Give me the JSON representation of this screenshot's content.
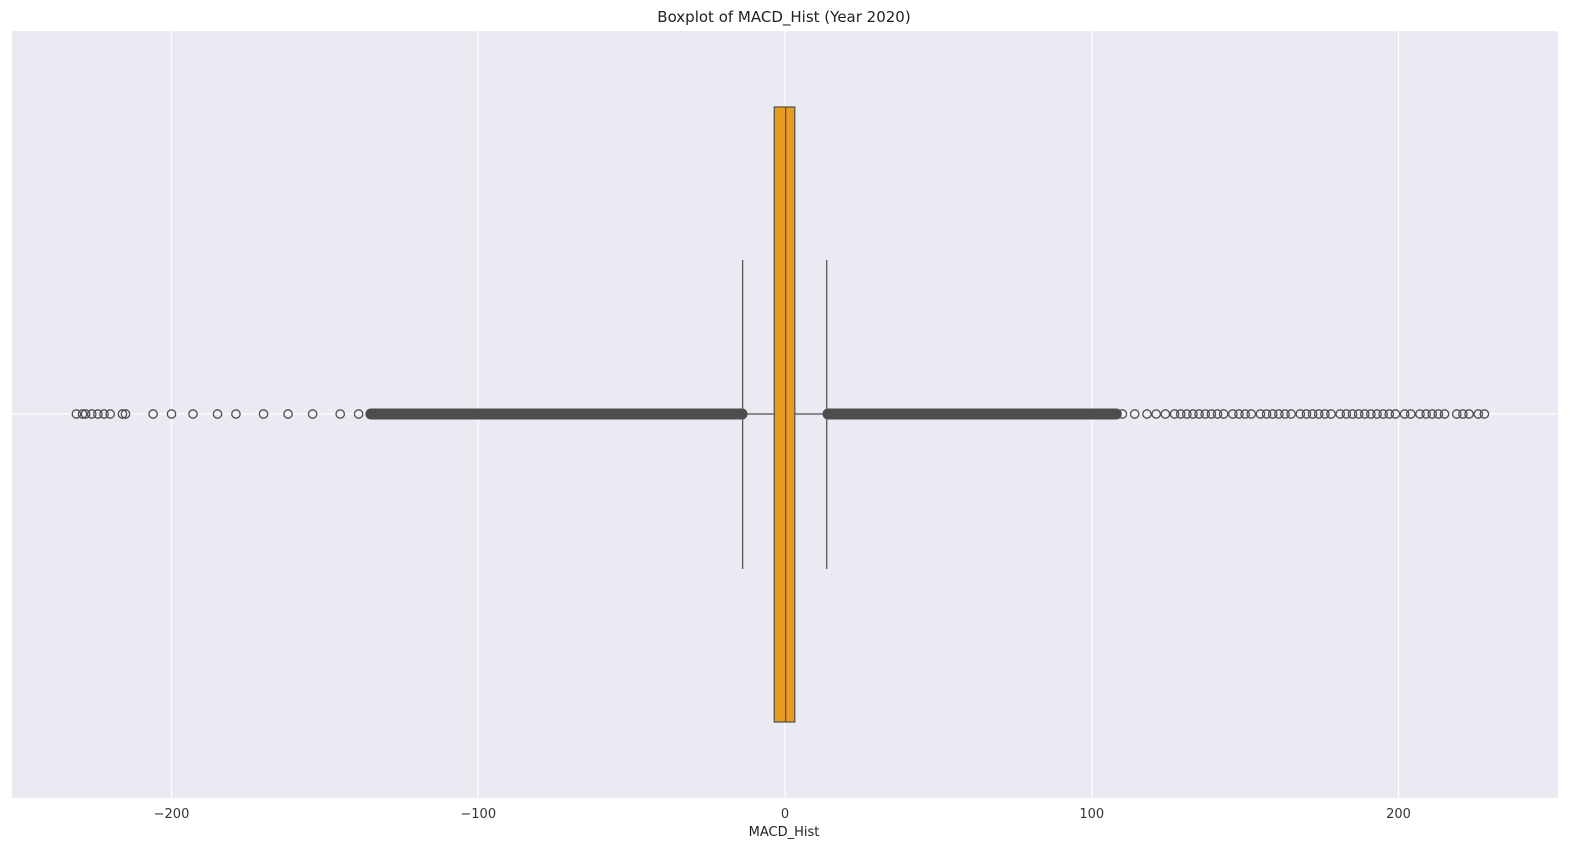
{
  "chart_data": {
    "type": "box",
    "title": "Boxplot of MACD_Hist (Year 2020)",
    "xlabel": "MACD_Hist",
    "ylabel": "",
    "orientation": "horizontal",
    "xlim": [
      -252,
      252
    ],
    "xticks": [
      -200,
      -100,
      0,
      100,
      200
    ],
    "xtick_labels": [
      "−200",
      "−100",
      "0",
      "100",
      "200"
    ],
    "grid": true,
    "box": {
      "color": "#e69c1f",
      "edge_color": "#4d4d4d",
      "q1": -3.5,
      "median": 0.2,
      "q3": 3.2,
      "whisker_low": -13.8,
      "whisker_high": 13.6
    },
    "outliers_low_dense": [
      -135,
      -14
    ],
    "outliers_high_dense": [
      14,
      108
    ],
    "outliers_low": [
      -231,
      -229,
      -228,
      -226,
      -224,
      -222,
      -220,
      -216,
      -215,
      -206,
      -200,
      -193,
      -185,
      -179,
      -170,
      -162,
      -154,
      -145,
      -139
    ],
    "outliers_high": [
      110,
      114,
      118,
      121,
      124,
      127,
      129,
      131,
      133,
      135,
      137,
      139,
      141,
      143,
      146,
      148,
      150,
      152,
      155,
      157,
      159,
      161,
      163,
      165,
      168,
      170,
      172,
      174,
      176,
      178,
      181,
      183,
      185,
      187,
      189,
      191,
      193,
      195,
      197,
      199,
      202,
      204,
      207,
      209,
      211,
      213,
      215,
      219,
      221,
      223,
      226,
      228
    ],
    "colors": {
      "background": "#eaeaf2",
      "grid": "#ffffff"
    }
  }
}
